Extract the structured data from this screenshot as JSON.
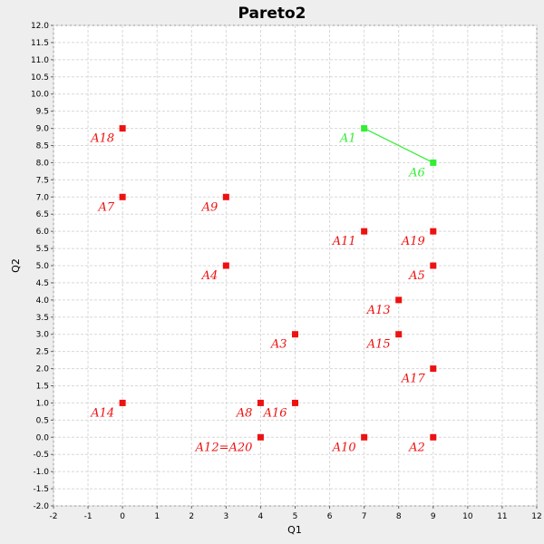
{
  "chart_data": {
    "type": "scatter",
    "title": "Pareto2",
    "xlabel": "Q1",
    "ylabel": "Q2",
    "xlim": [
      -2,
      12
    ],
    "ylim": [
      -2,
      12
    ],
    "x_ticks": [
      -2,
      -1,
      0,
      1,
      2,
      3,
      4,
      5,
      6,
      7,
      8,
      9,
      10,
      11,
      12
    ],
    "y_ticks": [
      "-2.0",
      "-1.5",
      "-1.0",
      "-0.5",
      "0.0",
      "0.5",
      "1.0",
      "1.5",
      "2.0",
      "2.5",
      "3.0",
      "3.5",
      "4.0",
      "4.5",
      "5.0",
      "5.5",
      "6.0",
      "6.5",
      "7.0",
      "7.5",
      "8.0",
      "8.5",
      "9.0",
      "9.5",
      "10.0",
      "10.5",
      "11.0",
      "11.5",
      "12.0"
    ],
    "grid": true,
    "colors": {
      "pareto": "#33ee33",
      "dominated": "#ee1111",
      "plot_background": "#ffffff",
      "page_background": "#eeeeee",
      "grid": "#d8d8d8"
    },
    "pareto_front": [
      "A1",
      "A6"
    ],
    "points": [
      {
        "label": "A1",
        "x": 7,
        "y": 9,
        "pareto": true
      },
      {
        "label": "A6",
        "x": 9,
        "y": 8,
        "pareto": true
      },
      {
        "label": "A18",
        "x": 0,
        "y": 9,
        "pareto": false
      },
      {
        "label": "A7",
        "x": 0,
        "y": 7,
        "pareto": false
      },
      {
        "label": "A9",
        "x": 3,
        "y": 7,
        "pareto": false
      },
      {
        "label": "A11",
        "x": 7,
        "y": 6,
        "pareto": false
      },
      {
        "label": "A19",
        "x": 9,
        "y": 6,
        "pareto": false
      },
      {
        "label": "A4",
        "x": 3,
        "y": 5,
        "pareto": false
      },
      {
        "label": "A5",
        "x": 9,
        "y": 5,
        "pareto": false
      },
      {
        "label": "A13",
        "x": 8,
        "y": 4,
        "pareto": false
      },
      {
        "label": "A3",
        "x": 5,
        "y": 3,
        "pareto": false
      },
      {
        "label": "A15",
        "x": 8,
        "y": 3,
        "pareto": false
      },
      {
        "label": "A17",
        "x": 9,
        "y": 2,
        "pareto": false
      },
      {
        "label": "A14",
        "x": 0,
        "y": 1,
        "pareto": false
      },
      {
        "label": "A8",
        "x": 4,
        "y": 1,
        "pareto": false
      },
      {
        "label": "A16",
        "x": 5,
        "y": 1,
        "pareto": false
      },
      {
        "label": "A12=A20",
        "x": 4,
        "y": 0,
        "pareto": false
      },
      {
        "label": "A10",
        "x": 7,
        "y": 0,
        "pareto": false
      },
      {
        "label": "A2",
        "x": 9,
        "y": 0,
        "pareto": false
      }
    ]
  }
}
